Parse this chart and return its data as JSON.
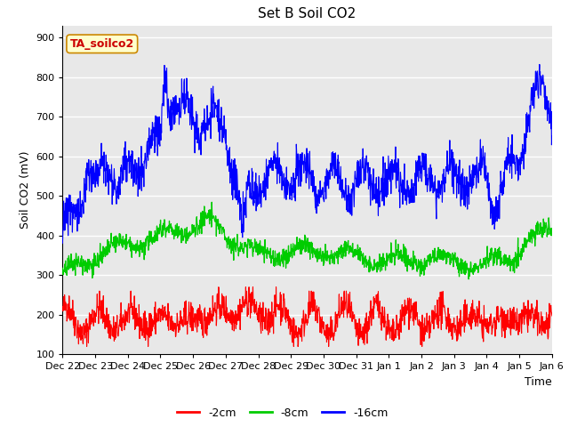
{
  "title": "Set B Soil CO2",
  "ylabel": "Soil CO2 (mV)",
  "xlabel": "Time",
  "annotation": "TA_soilco2",
  "ylim": [
    100,
    930
  ],
  "yticks": [
    100,
    200,
    300,
    400,
    500,
    600,
    700,
    800,
    900
  ],
  "legend_labels": [
    "-2cm",
    "-8cm",
    "-16cm"
  ],
  "legend_colors": [
    "#ff0000",
    "#00cc00",
    "#0000ff"
  ],
  "line_colors": {
    "shallow": "#ff0000",
    "mid": "#00cc00",
    "deep": "#0000ff"
  },
  "xtick_labels": [
    "Dec 22",
    "Dec 23",
    "Dec 24",
    "Dec 25",
    "Dec 26",
    "Dec 27",
    "Dec 28",
    "Dec 29",
    "Dec 30",
    "Dec 31",
    "Jan 1",
    "Jan 2",
    "Jan 3",
    "Jan 4",
    "Jan 5",
    "Jan 6"
  ],
  "n_points": 1500,
  "background_color": "#e8e8e8",
  "title_fontsize": 11,
  "axis_fontsize": 9,
  "tick_fontsize": 8,
  "legend_fontsize": 9
}
